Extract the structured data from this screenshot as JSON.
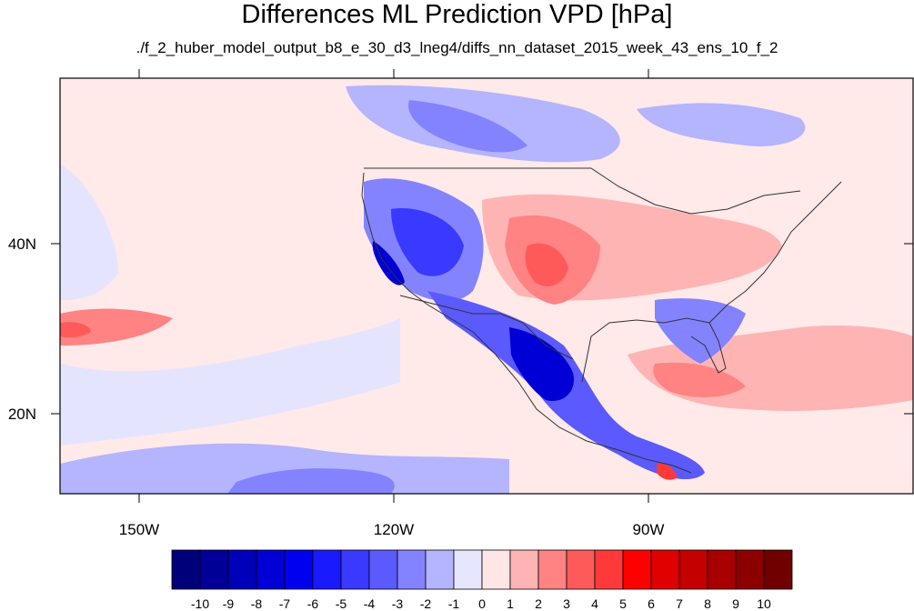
{
  "title": "Differences ML Prediction VPD [hPa]",
  "subtitle": "./f_2_huber_model_output_b8_e_30_d3_lneg4/diffs_nn_dataset_2015_week_43_ens_10_f_2",
  "map": {
    "lon_range": [
      -160,
      -62
    ],
    "lat_range": [
      10.5,
      59.5
    ],
    "lon_labels": [
      "150W",
      "120W",
      "90W"
    ],
    "lat_labels": [
      "40N",
      "20N"
    ]
  },
  "colorbar": {
    "labels": [
      "-10",
      "-9",
      "-8",
      "-7",
      "-6",
      "-5",
      "-4",
      "-3",
      "-2",
      "-1",
      "0",
      "1",
      "2",
      "3",
      "4",
      "5",
      "6",
      "7",
      "8",
      "9",
      "10"
    ],
    "colors": [
      "#00007a",
      "#000099",
      "#0000b8",
      "#0000d6",
      "#0000f0",
      "#1a1aff",
      "#3939ff",
      "#5a5aff",
      "#8383ff",
      "#b4b4ff",
      "#e6e6ff",
      "#ffe6e6",
      "#ffb4b4",
      "#ff8383",
      "#ff5a5a",
      "#ff3939",
      "#ff0000",
      "#e00000",
      "#c40000",
      "#a80000",
      "#8c0000",
      "#700000"
    ]
  }
}
